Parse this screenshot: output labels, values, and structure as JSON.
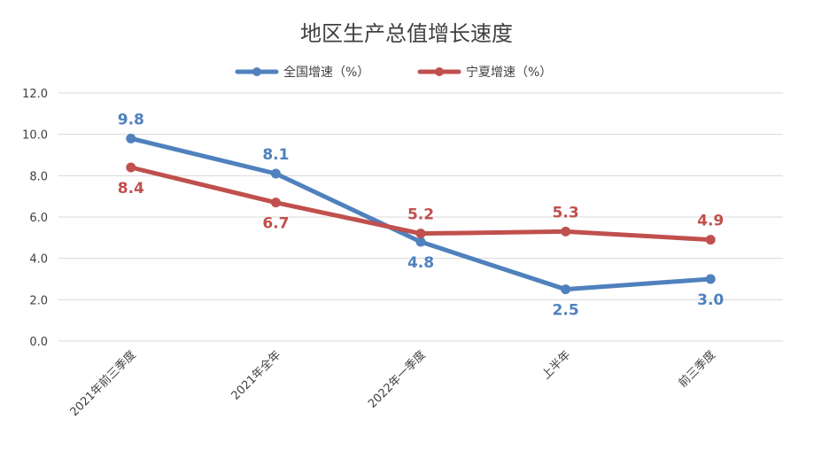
{
  "chart_data": {
    "type": "line",
    "title": "地区生产总值增长速度",
    "categories": [
      "2021年前三季度",
      "2021年全年",
      "2022年一季度",
      "上半年",
      "前三季度"
    ],
    "ylim": [
      0,
      12
    ],
    "yticks": [
      "0.0",
      "2.0",
      "4.0",
      "6.0",
      "8.0",
      "10.0",
      "12.0"
    ],
    "grid": true,
    "legend_position": "top",
    "series": [
      {
        "name": "全国增速（%）",
        "color": "#4F81BD",
        "values": [
          9.8,
          8.1,
          4.8,
          2.5,
          3.0
        ],
        "labels": [
          "9.8",
          "8.1",
          "4.8",
          "2.5",
          "3.0"
        ],
        "label_pos": [
          "above",
          "above",
          "below",
          "below",
          "below"
        ]
      },
      {
        "name": "宁夏增速（%）",
        "color": "#C0504D",
        "values": [
          8.4,
          6.7,
          5.2,
          5.3,
          4.9
        ],
        "labels": [
          "8.4",
          "6.7",
          "5.2",
          "5.3",
          "4.9"
        ],
        "label_pos": [
          "below",
          "below",
          "above",
          "above",
          "above"
        ]
      }
    ]
  }
}
